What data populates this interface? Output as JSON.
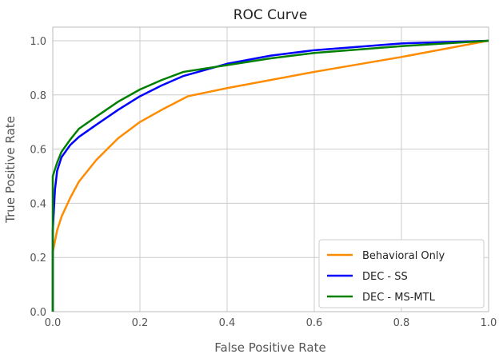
{
  "chart_data": {
    "type": "line",
    "title": "ROC Curve",
    "xlabel": "False Positive Rate",
    "ylabel": "True Positive Rate",
    "xlim": [
      0,
      1.0
    ],
    "ylim": [
      0,
      1.05
    ],
    "xticks": [
      "0.0",
      "0.2",
      "0.4",
      "0.6",
      "0.8",
      "1.0"
    ],
    "yticks": [
      "0.0",
      "0.2",
      "0.4",
      "0.6",
      "0.8",
      "1.0"
    ],
    "grid": true,
    "legend_position": "bottom-right",
    "series": [
      {
        "name": "Behavioral Only",
        "color": "#ff8c00",
        "x": [
          0,
          0,
          0.01,
          0.02,
          0.04,
          0.06,
          0.1,
          0.15,
          0.2,
          0.25,
          0.31,
          0.4,
          0.6,
          0.8,
          1.0
        ],
        "y": [
          0,
          0.22,
          0.3,
          0.35,
          0.42,
          0.48,
          0.56,
          0.64,
          0.7,
          0.745,
          0.795,
          0.825,
          0.885,
          0.94,
          1.0
        ]
      },
      {
        "name": "DEC - SS",
        "color": "#0000ff",
        "x": [
          0,
          0,
          0.005,
          0.01,
          0.02,
          0.04,
          0.06,
          0.1,
          0.15,
          0.2,
          0.25,
          0.3,
          0.4,
          0.5,
          0.6,
          0.8,
          1.0
        ],
        "y": [
          0,
          0.3,
          0.45,
          0.52,
          0.57,
          0.615,
          0.645,
          0.69,
          0.745,
          0.795,
          0.835,
          0.87,
          0.915,
          0.945,
          0.965,
          0.99,
          1.0
        ]
      },
      {
        "name": "DEC - MS-MTL",
        "color": "#008000",
        "x": [
          0,
          0,
          0.01,
          0.02,
          0.04,
          0.06,
          0.1,
          0.15,
          0.2,
          0.25,
          0.3,
          0.4,
          0.5,
          0.6,
          0.8,
          1.0
        ],
        "y": [
          0,
          0.5,
          0.55,
          0.59,
          0.635,
          0.675,
          0.72,
          0.775,
          0.82,
          0.855,
          0.885,
          0.91,
          0.935,
          0.955,
          0.98,
          1.0
        ]
      }
    ]
  }
}
